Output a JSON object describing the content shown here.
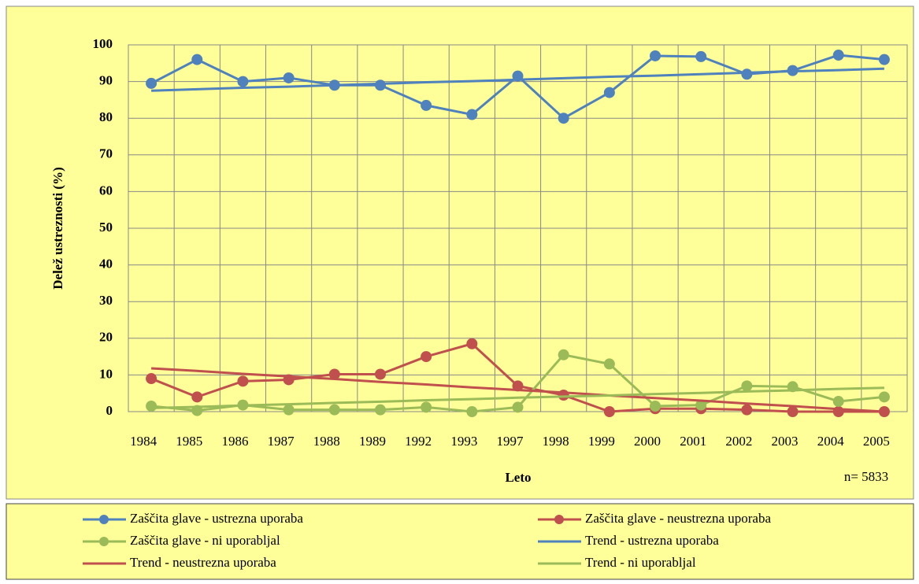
{
  "chart_data": {
    "type": "line",
    "x_label": "Leto",
    "y_label": "Delež ustreznosti (%)",
    "annotation": "n= 5833",
    "categories": [
      "1984",
      "1985",
      "1986",
      "1987",
      "1988",
      "1989",
      "1992",
      "1993",
      "1997",
      "1998",
      "1999",
      "2000",
      "2001",
      "2002",
      "2003",
      "2004",
      "2005"
    ],
    "series": [
      {
        "name": "Zaščita glave - ustrezna uporaba",
        "color": "#4f81bd",
        "marker": true,
        "values": [
          89.5,
          96,
          90,
          91,
          89,
          89,
          83.5,
          81,
          91.5,
          80,
          87,
          97,
          96.8,
          92,
          93,
          97.2,
          96
        ]
      },
      {
        "name": "Zaščita glave  - neustrezna uporaba",
        "color": "#c0504d",
        "marker": true,
        "values": [
          9,
          4,
          8.3,
          8.7,
          10.2,
          10.2,
          15,
          18.5,
          7,
          4.5,
          0,
          0.8,
          0.8,
          0.5,
          0,
          0,
          0
        ]
      },
      {
        "name": "Zaščita glave  - ni uporabljal",
        "color": "#9bbb59",
        "marker": true,
        "values": [
          1.5,
          0.3,
          1.8,
          0.5,
          0.5,
          0.5,
          1.2,
          0,
          1.2,
          15.5,
          13,
          1.5,
          1.8,
          7,
          6.8,
          2.8,
          4
        ]
      },
      {
        "name": "Trend - ustrezna uporaba",
        "color": "#4f81bd",
        "marker": false,
        "values": [
          87.5,
          87.9,
          88.3,
          88.6,
          89,
          89.4,
          89.8,
          90.1,
          90.5,
          90.9,
          91.3,
          91.6,
          92,
          92.4,
          92.8,
          93.1,
          93.5
        ]
      },
      {
        "name": "Trend - neustrezna uporaba",
        "color": "#c0504d",
        "marker": false,
        "values": [
          11.8,
          11.1,
          10.3,
          9.6,
          8.9,
          8.1,
          7.4,
          6.6,
          5.9,
          5.2,
          4.4,
          3.7,
          3,
          2.2,
          1.5,
          0.7,
          0
        ]
      },
      {
        "name": "Trend - ni uporabljal",
        "color": "#9bbb59",
        "marker": false,
        "values": [
          1,
          1.3,
          1.7,
          2,
          2.4,
          2.7,
          3.1,
          3.4,
          3.8,
          4.1,
          4.4,
          4.8,
          5.1,
          5.5,
          5.8,
          6.2,
          6.5
        ]
      }
    ],
    "ylim": [
      0,
      100
    ],
    "yticks": [
      0,
      10,
      20,
      30,
      40,
      50,
      60,
      70,
      80,
      90,
      100
    ],
    "grid": true,
    "legend": "bottom"
  }
}
